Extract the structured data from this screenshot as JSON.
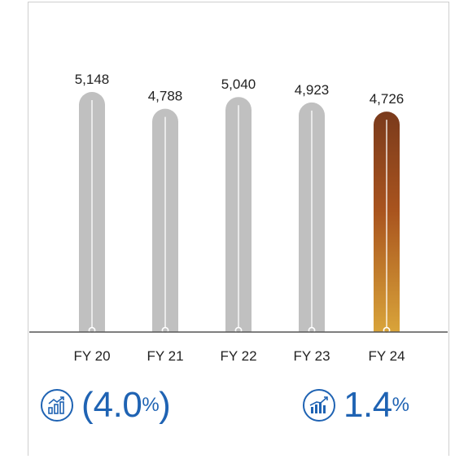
{
  "chart_data": {
    "type": "bar",
    "categories": [
      "FY 20",
      "FY 21",
      "FY 22",
      "FY 23",
      "FY 24"
    ],
    "values": [
      5148,
      4788,
      5040,
      4923,
      4726
    ],
    "value_labels": [
      "5,148",
      "4,788",
      "5,040",
      "4,923",
      "4,726"
    ],
    "highlight_index": 4,
    "ylim": [
      0,
      5148
    ],
    "grid": false,
    "colors": {
      "bar": "#c0c0c0",
      "highlight_top": "#7a3a1c",
      "highlight_mid": "#a9541e",
      "highlight_bottom": "#d9a43a",
      "axis": "#555555"
    }
  },
  "stats": {
    "left": {
      "icon": "growth-chart-icon",
      "open_paren": "(",
      "value": "4.0",
      "unit": "%",
      "close_paren": ")"
    },
    "right": {
      "icon": "bar-growth-icon",
      "value": "1.4",
      "unit": "%"
    }
  },
  "accent_color": "#1f63b3"
}
